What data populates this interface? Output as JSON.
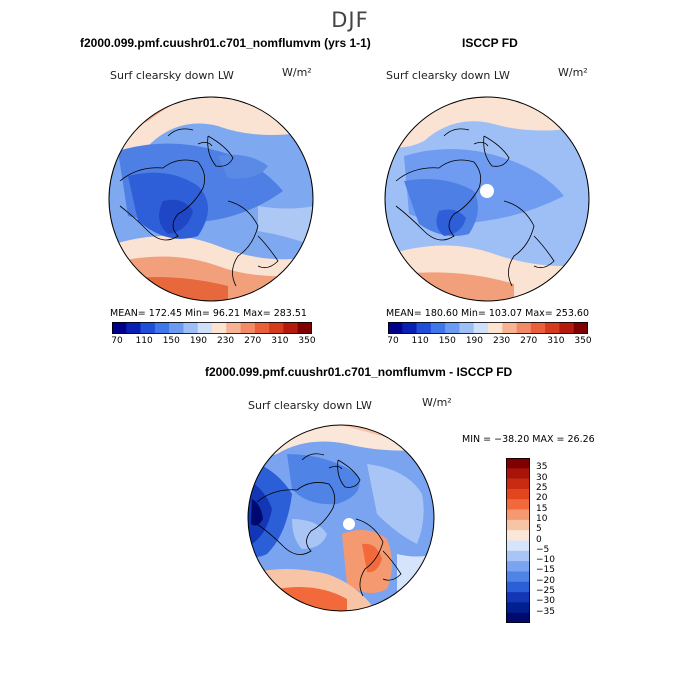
{
  "season": "DJF",
  "panels": {
    "model": {
      "title": "f2000.099.pmf.cuushr01.c701_nomflumvm (yrs 1-1)",
      "field": "Surf clearsky down LW",
      "units": "W/m²",
      "stats": "MEAN= 172.45   Min=  96.21   Max= 283.51"
    },
    "obs": {
      "title": "ISCCP FD",
      "field": "Surf clearsky down LW",
      "units": "W/m²",
      "stats": "MEAN= 180.60   Min= 103.07   Max= 253.60"
    },
    "diff": {
      "title": "f2000.099.pmf.cuushr01.c701_nomflumvm - ISCCP FD",
      "field": "Surf clearsky down LW",
      "units": "W/m²",
      "minmax": "MIN = −38.20  MAX =   26.26"
    }
  },
  "colorbar_abs": {
    "labels": [
      "70",
      "110",
      "150",
      "190",
      "230",
      "270",
      "310",
      "350"
    ],
    "colors": [
      "#00008b",
      "#0a1fb4",
      "#1f4fd8",
      "#3f76e8",
      "#6b9af0",
      "#9ebef6",
      "#cfe0fa",
      "#fde4d2",
      "#f7b394",
      "#f18a66",
      "#e85f3a",
      "#d43a1c",
      "#b31a0c",
      "#7f0000"
    ]
  },
  "colorbar_diff": {
    "labels": [
      "35",
      "30",
      "25",
      "20",
      "15",
      "10",
      "5",
      "0",
      "−5",
      "−10",
      "−15",
      "−20",
      "−25",
      "−30",
      "−35"
    ],
    "colors": [
      "#7f0000",
      "#a8130a",
      "#c82a12",
      "#e2461f",
      "#f26a3b",
      "#f59a70",
      "#f8c4a6",
      "#fbe7d9",
      "#d6e4fb",
      "#a9c5f6",
      "#7aa4ef",
      "#4f83e6",
      "#2a5fd8",
      "#1236b5",
      "#00208f",
      "#000a6e"
    ]
  }
}
